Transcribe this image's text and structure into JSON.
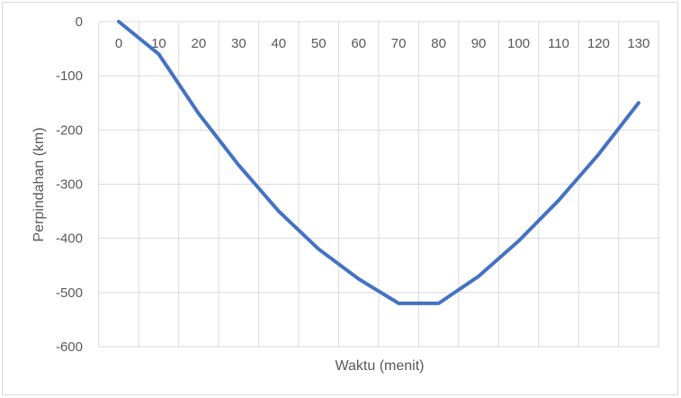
{
  "chart_data": {
    "type": "line",
    "xlabel": "Waktu (menit)",
    "ylabel": "Perpindahan (km)",
    "x": [
      0,
      10,
      20,
      30,
      40,
      50,
      60,
      70,
      80,
      90,
      100,
      110,
      120,
      130
    ],
    "series": [
      {
        "values": [
          0,
          -60,
          -170,
          -265,
          -350,
          -420,
          -475,
          -520,
          -520,
          -470,
          -405,
          -330,
          -245,
          -150
        ],
        "color": "#4472c4"
      }
    ],
    "ylim": [
      -600,
      0
    ],
    "yticks": [
      0,
      -100,
      -200,
      -300,
      -400,
      -500,
      -600
    ],
    "xlabels_position": "top",
    "grid": true,
    "gridColor": "#d9d9d9"
  }
}
